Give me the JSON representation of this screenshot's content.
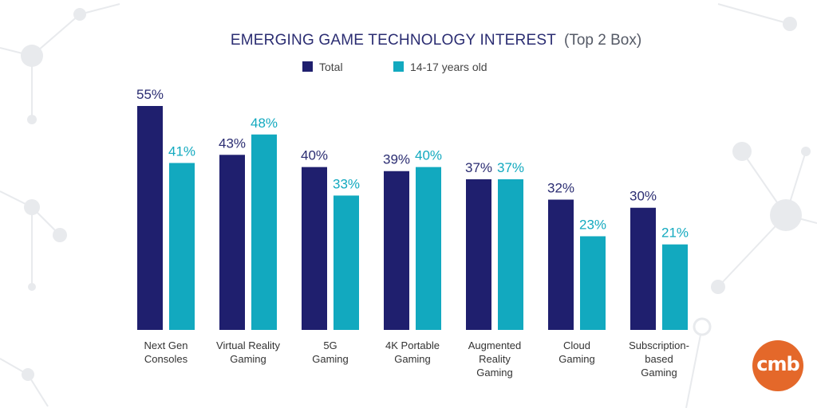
{
  "chart_data": {
    "type": "bar",
    "title": "EMERGING GAME TECHNOLOGY INTEREST",
    "subtitle": "(Top 2 Box)",
    "categories": [
      [
        "Next Gen",
        "Consoles"
      ],
      [
        "Virtual Reality",
        "Gaming"
      ],
      [
        "5G",
        "Gaming"
      ],
      [
        "4K Portable",
        "Gaming"
      ],
      [
        "Augmented",
        "Reality",
        "Gaming"
      ],
      [
        "Cloud",
        "Gaming"
      ],
      [
        "Subscription-",
        "based",
        "Gaming"
      ]
    ],
    "series": [
      {
        "name": "Total",
        "values": [
          55,
          43,
          40,
          39,
          37,
          32,
          30
        ],
        "labels": [
          "55%",
          "43%",
          "40%",
          "39%",
          "37%",
          "32%",
          "30%"
        ],
        "color": "#1f1f6e"
      },
      {
        "name": "14-17 years old",
        "values": [
          41,
          48,
          33,
          40,
          37,
          23,
          21
        ],
        "labels": [
          "41%",
          "48%",
          "33%",
          "40%",
          "37%",
          "23%",
          "21%"
        ],
        "color": "#12a9bf"
      }
    ],
    "ylim": [
      0,
      55
    ],
    "grid": false,
    "legend_position": "top-center"
  },
  "logo": {
    "text": "cmb",
    "color": "#e4682a"
  }
}
